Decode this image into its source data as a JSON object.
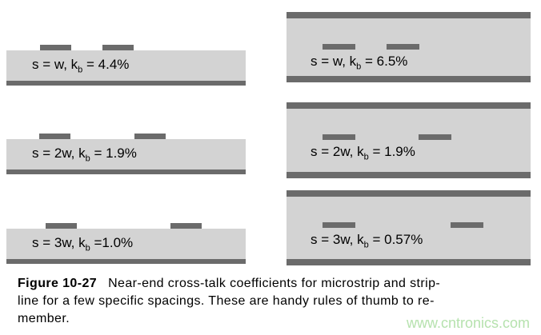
{
  "figure": {
    "caption": {
      "line1_bold": "Figure 10-27",
      "line1_rest": "Near-end cross-talk coefficients for microstrip and strip-",
      "line2": "line for a few specific spacings. These are handy rules of thumb to re-",
      "line3": "member."
    },
    "watermark": "www.cntronics.com"
  },
  "diagrams": {
    "microstrip": [
      {
        "label": "s = w, kb = 4.4%",
        "pre": "s = w, k",
        "sub": "b",
        "post": " = 4.4%"
      },
      {
        "label": "s = 2w, kb = 1.9%",
        "pre": "s = 2w, k",
        "sub": "b",
        "post": " = 1.9%"
      },
      {
        "label": "s = 3w, kb =1.0%",
        "pre": "s = 3w, k",
        "sub": "b",
        "post": " =1.0%"
      }
    ],
    "stripline": [
      {
        "label": "s = w, kb = 6.5%",
        "pre": "s = w, k",
        "sub": "b",
        "post": " = 6.5%"
      },
      {
        "label": "s = 2w, kb = 1.9%",
        "pre": "s = 2w, k",
        "sub": "b",
        "post": " = 1.9%"
      },
      {
        "label": "s = 3w, kb = 0.57%",
        "pre": "s = 3w, k",
        "sub": "b",
        "post": " = 0.57%"
      }
    ]
  },
  "colors": {
    "dielectric_gray": "#d3d3d3",
    "conductor_gray": "#6b6b6b",
    "caption_text": "#000000",
    "watermark_green": "#b6e2ae",
    "background": "#ffffff"
  }
}
